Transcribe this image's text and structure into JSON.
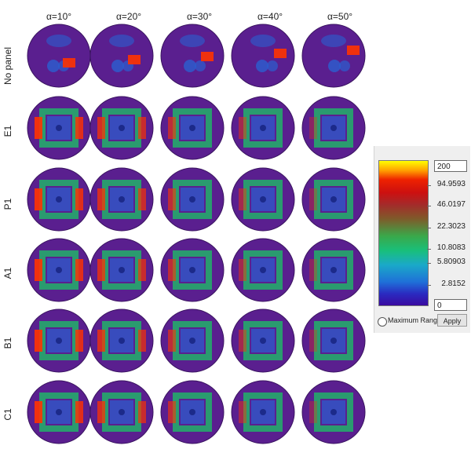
{
  "columns": [
    "α=10°",
    "α=20°",
    "α=30°",
    "α=40°",
    "α=50°"
  ],
  "rows": [
    "No panel",
    "E1",
    "P1",
    "A1",
    "B1",
    "C1"
  ],
  "legend": {
    "max_value": "200",
    "min_value": "0",
    "tick_labels": [
      "94.9593",
      "46.0197",
      "22.3023",
      "10.8083",
      "5.80903",
      "2.8152"
    ],
    "max_range_label": "Maximum Range",
    "apply_label": "Apply"
  },
  "colors": {
    "disk_background": "#5a1f8f",
    "hot": "#ff3300",
    "warm": "#22b26a",
    "cool": "#2a5fd0"
  }
}
